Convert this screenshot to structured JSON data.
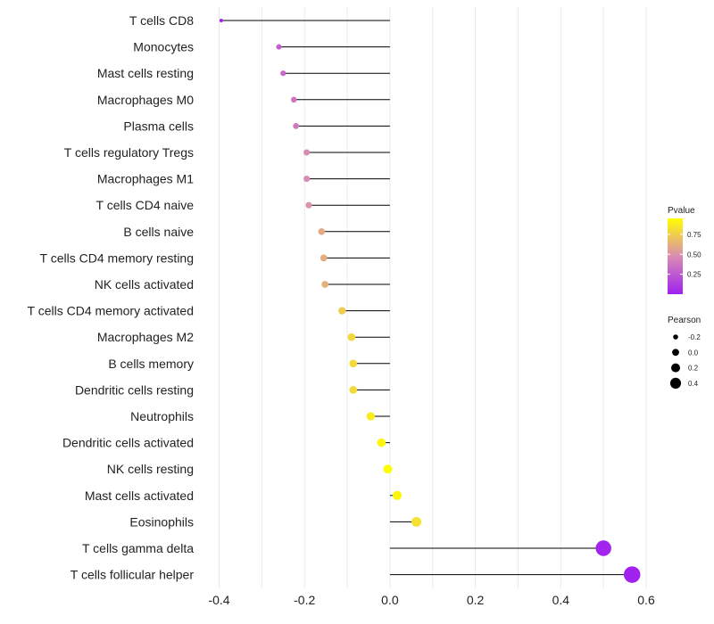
{
  "chart_data": {
    "type": "lollipop",
    "categories": [
      "T cells CD8",
      "Monocytes",
      "Mast cells resting",
      "Macrophages M0",
      "Plasma cells",
      "T cells regulatory  Tregs",
      "Macrophages M1",
      "T cells CD4 naive",
      "B cells naive",
      "T cells CD4 memory resting",
      "NK cells activated",
      "T cells CD4 memory activated",
      "Macrophages M2",
      "B cells memory",
      "Dendritic cells resting",
      "Neutrophils",
      "Dendritic cells activated",
      "NK cells resting",
      "Mast cells activated",
      "Eosinophils",
      "T cells gamma delta",
      "T cells follicular helper"
    ],
    "values": [
      -0.395,
      -0.26,
      -0.25,
      -0.225,
      -0.22,
      -0.195,
      -0.195,
      -0.19,
      -0.16,
      -0.155,
      -0.152,
      -0.112,
      -0.09,
      -0.086,
      -0.086,
      -0.045,
      -0.02,
      -0.005,
      0.017,
      0.062,
      0.5,
      0.567
    ],
    "pvalues": [
      0.02,
      0.3,
      0.34,
      0.4,
      0.42,
      0.5,
      0.5,
      0.53,
      0.63,
      0.65,
      0.66,
      0.78,
      0.83,
      0.84,
      0.84,
      0.92,
      0.96,
      0.99,
      0.96,
      0.87,
      0.02,
      0.01
    ],
    "xlim": [
      -0.42,
      0.6
    ],
    "xticks": [
      -0.4,
      -0.2,
      0.0,
      0.2,
      0.4,
      0.6
    ],
    "xtick_labels": [
      "-0.4",
      "-0.2",
      "0.0",
      "0.2",
      "0.4",
      "0.6"
    ],
    "title": "",
    "xlabel": "",
    "ylabel": "",
    "grid": true,
    "legend": {
      "placement": "right",
      "color_title": "Pvalue",
      "color_ticks": [
        0.75,
        0.5,
        0.25
      ],
      "color_tick_labels": [
        "0.75",
        "0.50",
        "0.25"
      ],
      "color_low": "#a020f0",
      "color_mid": "#d98cb3",
      "color_high": "#ffff00",
      "size_title": "Pearson",
      "size_values": [
        -0.2,
        0.0,
        0.2,
        0.4
      ],
      "size_labels": [
        "-0.2",
        "0.0",
        "0.2",
        "0.4"
      ]
    }
  }
}
